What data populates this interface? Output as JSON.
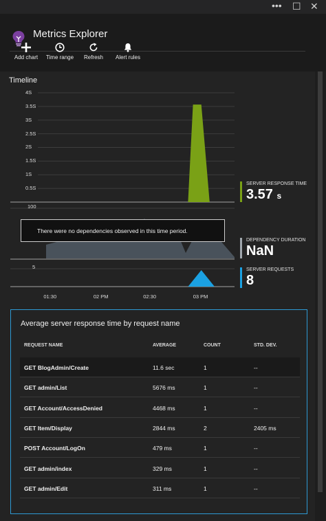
{
  "window": {
    "title": "Metrics Explorer",
    "controls": {
      "more": "•••",
      "maximize": "☐",
      "close": "✕"
    }
  },
  "toolbar": {
    "add_chart": "Add chart",
    "time_range": "Time range",
    "refresh": "Refresh",
    "alert_rules": "Alert rules"
  },
  "timeline": {
    "title": "Timeline",
    "tooltip": "There were no dependencies observed in this time period."
  },
  "chart_data": [
    {
      "type": "area",
      "title": "",
      "series": [
        {
          "name": "SERVER RESPONSE TIME",
          "color": "#7aa116",
          "x": [
            "01:05",
            "01:30",
            "02 PM",
            "02:30",
            "02:52",
            "02:55",
            "03 PM",
            "03:05",
            "03:08"
          ],
          "values": [
            0,
            0,
            0,
            0,
            0,
            3.57,
            3.57,
            0,
            0
          ]
        }
      ],
      "yticks": [
        "0.5S",
        "1S",
        "1.5S",
        "2S",
        "2.5S",
        "3S",
        "3.5S",
        "4S"
      ],
      "ylim": [
        0,
        4.1
      ]
    },
    {
      "type": "area",
      "title": "",
      "series": [
        {
          "name": "DEPENDENCY DURATION",
          "color": "#5a6470"
        }
      ],
      "yticks": [
        "100"
      ]
    },
    {
      "type": "area",
      "title": "",
      "series": [
        {
          "name": "SERVER REQUESTS",
          "color": "#1ba1e2",
          "x": [
            "02:52",
            "03 PM",
            "03:08"
          ],
          "values": [
            0,
            8,
            0
          ]
        }
      ],
      "yticks": [
        "5"
      ],
      "xticks": [
        "01:30",
        "02 PM",
        "02:30",
        "03 PM"
      ]
    }
  ],
  "metrics": [
    {
      "label": "SERVER RESPONSE TIME",
      "value": "3.57",
      "unit": "s",
      "color": "#7aa116"
    },
    {
      "label": "DEPENDENCY DURATION",
      "value": "NaN",
      "unit": "",
      "color": "#a0a7ad"
    },
    {
      "label": "SERVER REQUESTS",
      "value": "8",
      "unit": "",
      "color": "#1ba1e2"
    }
  ],
  "table": {
    "title": "Average server response time by request name",
    "headers": [
      "REQUEST NAME",
      "AVERAGE",
      "COUNT",
      "STD. DEV."
    ],
    "rows": [
      [
        "GET BlogAdmin/Create",
        "11.6 sec",
        "1",
        "--"
      ],
      [
        "GET admin/List",
        "5676 ms",
        "1",
        "--"
      ],
      [
        "GET Account/AccessDenied",
        "4468 ms",
        "1",
        "--"
      ],
      [
        "GET Item/Display",
        "2844 ms",
        "2",
        "2405 ms"
      ],
      [
        "POST Account/LogOn",
        "479 ms",
        "1",
        "--"
      ],
      [
        "GET admin/index",
        "329 ms",
        "1",
        "--"
      ],
      [
        "GET admin/Edit",
        "311 ms",
        "1",
        "--"
      ]
    ]
  }
}
